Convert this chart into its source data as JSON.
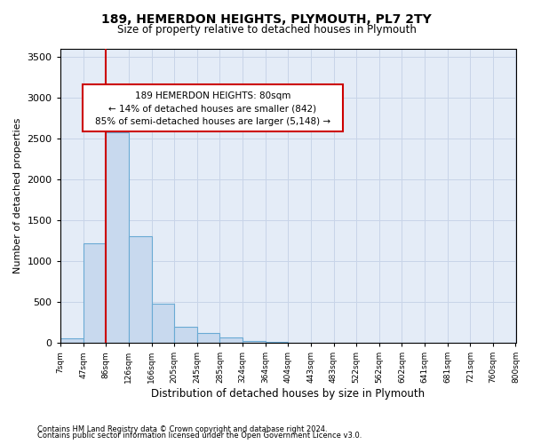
{
  "title": "189, HEMERDON HEIGHTS, PLYMOUTH, PL7 2TY",
  "subtitle": "Size of property relative to detached houses in Plymouth",
  "xlabel": "Distribution of detached houses by size in Plymouth",
  "ylabel": "Number of detached properties",
  "bar_color": "#c8d9ee",
  "bar_edge_color": "#6aaad4",
  "bar_edge_width": 0.8,
  "grid_color": "#c8d4e8",
  "bg_color": "#e4ecf7",
  "annotation_box_color": "#ffffff",
  "annotation_box_edge": "#cc0000",
  "vline_color": "#cc0000",
  "vline_x": 86,
  "annotation_text_line1": "189 HEMERDON HEIGHTS: 80sqm",
  "annotation_text_line2": "← 14% of detached houses are smaller (842)",
  "annotation_text_line3": "85% of semi-detached houses are larger (5,148) →",
  "footer_line1": "Contains HM Land Registry data © Crown copyright and database right 2024.",
  "footer_line2": "Contains public sector information licensed under the Open Government Licence v3.0.",
  "bins": [
    7,
    47,
    86,
    126,
    166,
    205,
    245,
    285,
    324,
    364,
    404,
    443,
    483,
    522,
    562,
    602,
    641,
    681,
    721,
    760,
    800
  ],
  "bin_labels": [
    "7sqm",
    "47sqm",
    "86sqm",
    "126sqm",
    "166sqm",
    "205sqm",
    "245sqm",
    "285sqm",
    "324sqm",
    "364sqm",
    "404sqm",
    "443sqm",
    "483sqm",
    "522sqm",
    "562sqm",
    "602sqm",
    "641sqm",
    "681sqm",
    "721sqm",
    "760sqm",
    "800sqm"
  ],
  "counts": [
    50,
    1220,
    2580,
    1310,
    480,
    195,
    125,
    65,
    25,
    12,
    5,
    2,
    1,
    1,
    0,
    0,
    0,
    0,
    0,
    0
  ],
  "ylim": [
    0,
    3600
  ],
  "yticks": [
    0,
    500,
    1000,
    1500,
    2000,
    2500,
    3000,
    3500
  ]
}
